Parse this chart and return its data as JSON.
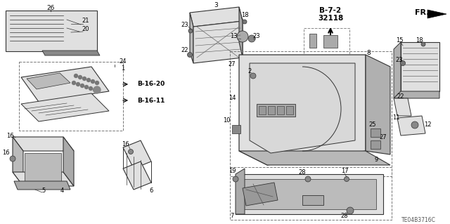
{
  "bg_color": "#ffffff",
  "part_number": "32118",
  "section": "B-7-2",
  "diagram_code": "TE04B3716C",
  "line_color": "#333333",
  "fill_color": "#cccccc",
  "fill_light": "#e0e0e0",
  "figsize": [
    6.4,
    3.19
  ],
  "dpi": 100
}
